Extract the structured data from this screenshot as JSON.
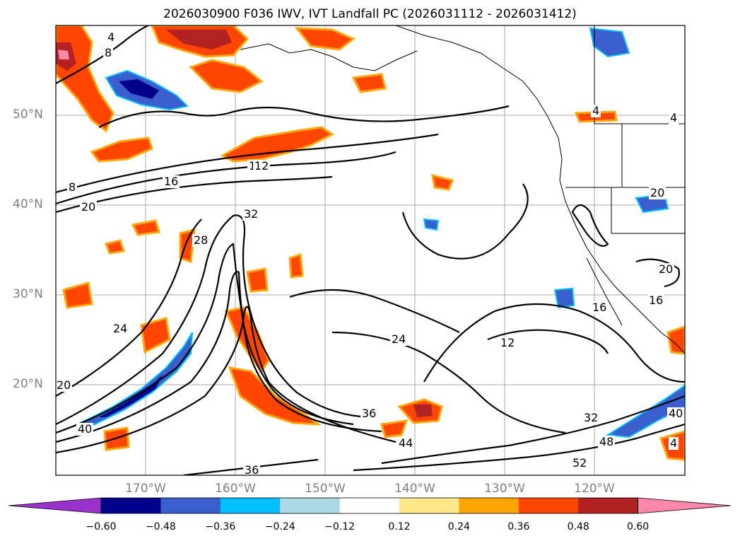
{
  "title": "2026030900 F036 IWV, IVT Landfall PC (2026031112 - 2026031412)",
  "latitude_labels": [
    "50°N",
    "40°N",
    "30°N",
    "20°N"
  ],
  "longitude_labels": [
    "170°W",
    "160°W",
    "150°W",
    "140°W",
    "130°W",
    "120°W"
  ],
  "contour_labels": [
    "4",
    "8",
    "8",
    "16",
    "12",
    "20",
    "32",
    "28",
    "24",
    "20",
    "40",
    "24",
    "12",
    "36",
    "44",
    "32",
    "48",
    "52",
    "40",
    "4",
    "36",
    "20",
    "16",
    "16",
    "20",
    "4",
    "12",
    "4"
  ],
  "colorbar": {
    "ticks": [
      "−0.60",
      "−0.48",
      "−0.36",
      "−0.24",
      "−0.12",
      "0.12",
      "0.24",
      "0.36",
      "0.48",
      "0.60"
    ],
    "colors": [
      "#9932cc",
      "#00008b",
      "#3a5fcd",
      "#00bfff",
      "#add8e6",
      "#ffffff",
      "#ffe78a",
      "#ffa500",
      "#ff4500",
      "#b22222",
      "#ff88aa"
    ]
  },
  "field_colors": {
    "red": "#b22222",
    "orange_red": "#ff4500",
    "orange": "#ffa500",
    "yellow": "#ffe78a",
    "blue": "#3a5fcd",
    "deep_blue": "#00008b",
    "cyan": "#00bfff",
    "light_blue": "#add8e6"
  }
}
